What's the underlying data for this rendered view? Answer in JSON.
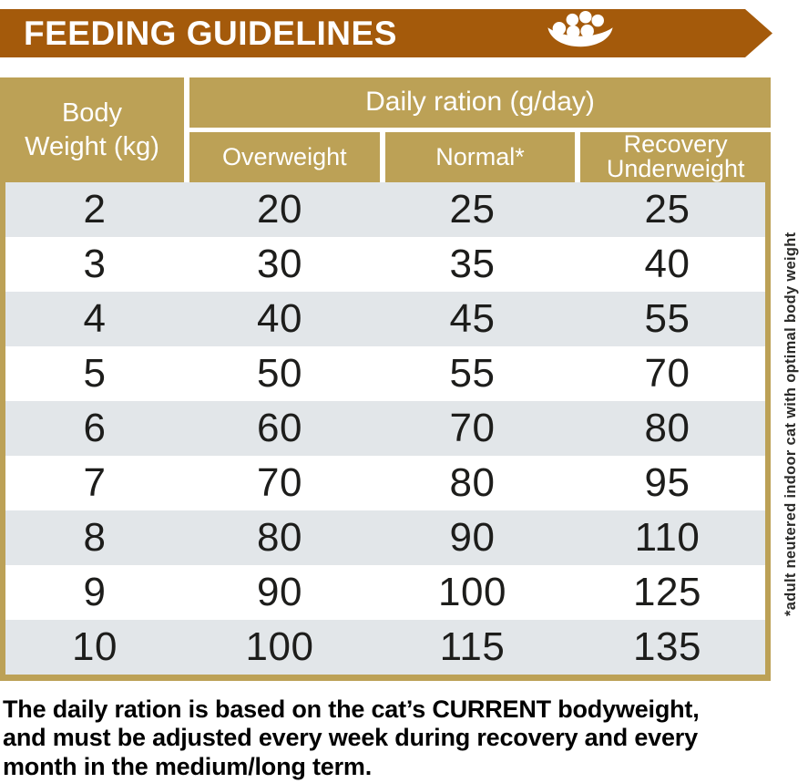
{
  "banner": {
    "title": "FEEDING GUIDELINES"
  },
  "table": {
    "corner_header": "Body\nWeight (kg)",
    "group_header": "Daily ration (g/day)",
    "sub_headers": [
      "Overweight",
      "Normal*",
      "Recovery\nUnderweight"
    ]
  },
  "side_note": "*adult neutered indoor cat with optimal body weight",
  "footer": {
    "lines": [
      "The daily ration is based on the cat’s CURRENT bodyweight,",
      "and must be adjusted every week during recovery and every",
      "month in the medium/long term."
    ]
  },
  "colors": {
    "banner_brown": "#A45A0B",
    "header_gold": "#BCA156",
    "row_alt_gray": "#E2E6E9",
    "text_dark": "#1D1D1B"
  },
  "chart_data": {
    "type": "table",
    "title": "FEEDING GUIDELINES",
    "column_group_label": "Daily ration (g/day)",
    "columns": [
      "Body Weight (kg)",
      "Overweight",
      "Normal*",
      "Recovery Underweight"
    ],
    "units": "g/day",
    "rows": [
      [
        2,
        20,
        25,
        25
      ],
      [
        3,
        30,
        35,
        40
      ],
      [
        4,
        40,
        45,
        55
      ],
      [
        5,
        50,
        55,
        70
      ],
      [
        6,
        60,
        70,
        80
      ],
      [
        7,
        70,
        80,
        95
      ],
      [
        8,
        80,
        90,
        110
      ],
      [
        9,
        90,
        100,
        125
      ],
      [
        10,
        100,
        115,
        135
      ]
    ],
    "footnote": "*adult neutered indoor cat with optimal body weight"
  }
}
